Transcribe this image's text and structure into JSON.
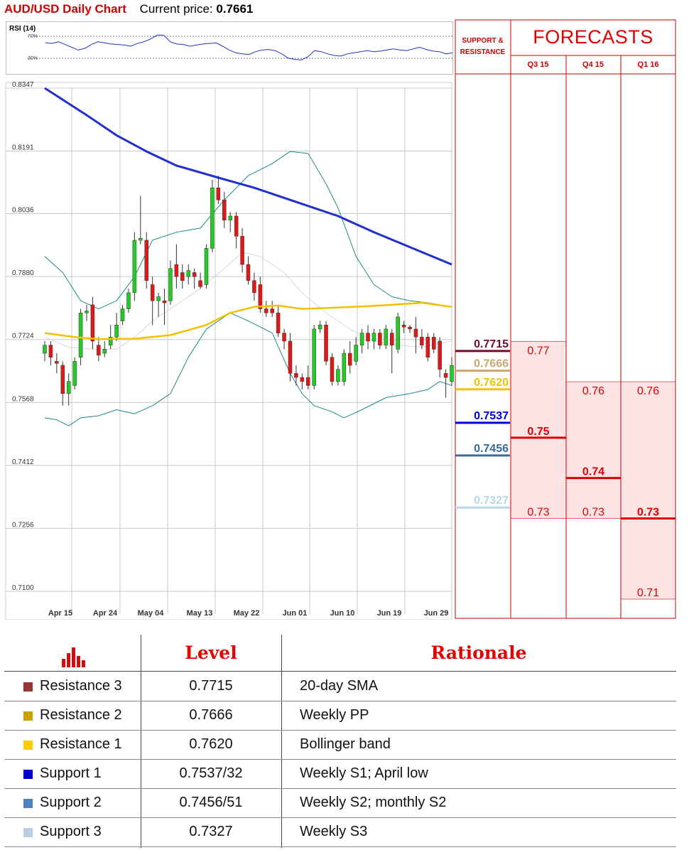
{
  "header": {
    "title": "AUD/USD Daily Chart",
    "current_label": "Current price:",
    "current_value": "0.7661"
  },
  "rsi": {
    "label": "RSI (14)",
    "level_high": "70%",
    "level_low": "30%",
    "values": [
      58,
      57,
      60,
      55,
      50,
      45,
      48,
      55,
      60,
      58,
      56,
      55,
      54,
      52,
      57,
      60,
      65,
      72,
      72,
      60,
      56,
      55,
      52,
      54,
      56,
      57,
      58,
      52,
      45,
      40,
      38,
      37,
      42,
      45,
      46,
      44,
      38,
      30,
      28,
      27,
      33,
      44,
      42,
      38,
      35,
      34,
      38,
      40,
      42,
      44,
      42,
      43,
      45,
      47,
      45,
      44,
      47,
      50,
      46,
      43,
      42,
      38,
      40
    ]
  },
  "panel": {
    "sr_title_1": "SUPPORT &",
    "sr_title_2": "RESISTANCE",
    "forecasts_title": "FORECASTS",
    "quarters": [
      "Q3 15",
      "Q4 15",
      "Q1 16"
    ]
  },
  "chart_data": {
    "type": "candlestick",
    "title": "AUD/USD Daily Chart",
    "y_ticks": [
      "0.8347",
      "0.8191",
      "0.8036",
      "0.7880",
      "0.7724",
      "0.7568",
      "0.7412",
      "0.7256",
      "0.7100"
    ],
    "ylim": [
      0.71,
      0.8347
    ],
    "x_ticks": [
      "Apr 15",
      "Apr 24",
      "May 04",
      "May 13",
      "May 22",
      "Jun 01",
      "Jun 10",
      "Jun 19",
      "Jun 29"
    ],
    "grid": true,
    "candles": [
      [
        0.769,
        0.772,
        0.767,
        0.771
      ],
      [
        0.771,
        0.772,
        0.766,
        0.768
      ],
      [
        0.767,
        0.769,
        0.764,
        0.7665
      ],
      [
        0.766,
        0.767,
        0.756,
        0.759
      ],
      [
        0.759,
        0.764,
        0.756,
        0.762
      ],
      [
        0.761,
        0.768,
        0.76,
        0.767
      ],
      [
        0.768,
        0.78,
        0.766,
        0.779
      ],
      [
        0.779,
        0.781,
        0.777,
        0.7795
      ],
      [
        0.781,
        0.783,
        0.77,
        0.772
      ],
      [
        0.771,
        0.773,
        0.767,
        0.7685
      ],
      [
        0.769,
        0.772,
        0.768,
        0.77
      ],
      [
        0.771,
        0.776,
        0.77,
        0.773
      ],
      [
        0.773,
        0.779,
        0.772,
        0.776
      ],
      [
        0.777,
        0.781,
        0.776,
        0.78
      ],
      [
        0.78,
        0.785,
        0.779,
        0.784
      ],
      [
        0.784,
        0.799,
        0.782,
        0.797
      ],
      [
        0.797,
        0.808,
        0.796,
        0.7975
      ],
      [
        0.797,
        0.799,
        0.785,
        0.787
      ],
      [
        0.786,
        0.788,
        0.776,
        0.782
      ],
      [
        0.782,
        0.784,
        0.778,
        0.783
      ],
      [
        0.782,
        0.785,
        0.776,
        0.7815
      ],
      [
        0.782,
        0.792,
        0.781,
        0.79
      ],
      [
        0.791,
        0.796,
        0.785,
        0.788
      ],
      [
        0.789,
        0.791,
        0.785,
        0.787
      ],
      [
        0.788,
        0.791,
        0.786,
        0.7895
      ],
      [
        0.789,
        0.79,
        0.785,
        0.788
      ],
      [
        0.787,
        0.789,
        0.785,
        0.7855
      ],
      [
        0.786,
        0.796,
        0.785,
        0.795
      ],
      [
        0.795,
        0.812,
        0.794,
        0.81
      ],
      [
        0.81,
        0.813,
        0.806,
        0.807
      ],
      [
        0.807,
        0.809,
        0.8,
        0.802
      ],
      [
        0.802,
        0.804,
        0.799,
        0.803
      ],
      [
        0.803,
        0.804,
        0.795,
        0.798
      ],
      [
        0.798,
        0.8,
        0.789,
        0.791
      ],
      [
        0.791,
        0.793,
        0.786,
        0.787
      ],
      [
        0.787,
        0.789,
        0.782,
        0.784
      ],
      [
        0.786,
        0.788,
        0.779,
        0.78
      ],
      [
        0.78,
        0.782,
        0.778,
        0.779
      ],
      [
        0.78,
        0.782,
        0.778,
        0.779
      ],
      [
        0.779,
        0.781,
        0.773,
        0.774
      ],
      [
        0.774,
        0.775,
        0.77,
        0.772
      ],
      [
        0.772,
        0.774,
        0.762,
        0.764
      ],
      [
        0.764,
        0.766,
        0.761,
        0.763
      ],
      [
        0.763,
        0.764,
        0.76,
        0.762
      ],
      [
        0.763,
        0.766,
        0.76,
        0.761
      ],
      [
        0.761,
        0.776,
        0.76,
        0.775
      ],
      [
        0.775,
        0.777,
        0.774,
        0.776
      ],
      [
        0.776,
        0.777,
        0.766,
        0.767
      ],
      [
        0.768,
        0.769,
        0.761,
        0.762
      ],
      [
        0.762,
        0.766,
        0.761,
        0.765
      ],
      [
        0.762,
        0.77,
        0.761,
        0.769
      ],
      [
        0.769,
        0.772,
        0.764,
        0.766
      ],
      [
        0.767,
        0.773,
        0.766,
        0.771
      ],
      [
        0.771,
        0.775,
        0.769,
        0.774
      ],
      [
        0.774,
        0.776,
        0.77,
        0.772
      ],
      [
        0.772,
        0.775,
        0.77,
        0.774
      ],
      [
        0.774,
        0.775,
        0.77,
        0.771
      ],
      [
        0.771,
        0.776,
        0.77,
        0.775
      ],
      [
        0.774,
        0.775,
        0.764,
        0.771
      ],
      [
        0.77,
        0.779,
        0.769,
        0.778
      ],
      [
        0.776,
        0.777,
        0.774,
        0.7755
      ],
      [
        0.7755,
        0.776,
        0.774,
        0.775
      ],
      [
        0.775,
        0.778,
        0.769,
        0.773
      ],
      [
        0.773,
        0.775,
        0.77,
        0.771
      ],
      [
        0.773,
        0.774,
        0.767,
        0.768
      ],
      [
        0.773,
        0.774,
        0.769,
        0.77
      ],
      [
        0.772,
        0.773,
        0.763,
        0.765
      ],
      [
        0.764,
        0.765,
        0.758,
        0.763
      ],
      [
        0.762,
        0.768,
        0.761,
        0.766
      ]
    ],
    "sma200": [
      [
        0,
        0.8347
      ],
      [
        7,
        0.828
      ],
      [
        12,
        0.823
      ],
      [
        17,
        0.819
      ],
      [
        22,
        0.8155
      ],
      [
        29,
        0.8125
      ],
      [
        35,
        0.81
      ],
      [
        43,
        0.806
      ],
      [
        49,
        0.803
      ],
      [
        55,
        0.799
      ],
      [
        68,
        0.791
      ]
    ],
    "sma_short": [
      [
        0,
        0.774
      ],
      [
        5,
        0.773
      ],
      [
        9,
        0.7725
      ],
      [
        15,
        0.7726
      ],
      [
        21,
        0.7735
      ],
      [
        27,
        0.776
      ],
      [
        31,
        0.779
      ],
      [
        35,
        0.7805
      ],
      [
        39,
        0.7808
      ],
      [
        43,
        0.78
      ],
      [
        47,
        0.7802
      ],
      [
        53,
        0.7806
      ],
      [
        58,
        0.781
      ],
      [
        63,
        0.7815
      ],
      [
        68,
        0.7805
      ]
    ],
    "bb_upper": [
      [
        0,
        0.793
      ],
      [
        3,
        0.789
      ],
      [
        6,
        0.782
      ],
      [
        9,
        0.78
      ],
      [
        12,
        0.782
      ],
      [
        15,
        0.788
      ],
      [
        18,
        0.797
      ],
      [
        22,
        0.799
      ],
      [
        26,
        0.8
      ],
      [
        30,
        0.807
      ],
      [
        34,
        0.813
      ],
      [
        38,
        0.816
      ],
      [
        41,
        0.819
      ],
      [
        44,
        0.8185
      ],
      [
        47,
        0.811
      ],
      [
        49,
        0.805
      ],
      [
        52,
        0.793
      ],
      [
        55,
        0.786
      ],
      [
        58,
        0.783
      ],
      [
        61,
        0.782
      ],
      [
        64,
        0.7815
      ],
      [
        68,
        0.7805
      ]
    ],
    "bb_middle": [
      [
        0,
        0.773
      ],
      [
        4,
        0.7705
      ],
      [
        8,
        0.77
      ],
      [
        12,
        0.77
      ],
      [
        15,
        0.773
      ],
      [
        18,
        0.777
      ],
      [
        22,
        0.781
      ],
      [
        26,
        0.785
      ],
      [
        30,
        0.79
      ],
      [
        33,
        0.794
      ],
      [
        36,
        0.793
      ],
      [
        40,
        0.789
      ],
      [
        43,
        0.784
      ],
      [
        47,
        0.779
      ],
      [
        51,
        0.775
      ],
      [
        55,
        0.772
      ],
      [
        59,
        0.771
      ],
      [
        63,
        0.7705
      ],
      [
        68,
        0.772
      ]
    ],
    "bb_lower": [
      [
        0,
        0.753
      ],
      [
        2,
        0.7525
      ],
      [
        4,
        0.751
      ],
      [
        6,
        0.753
      ],
      [
        9,
        0.7535
      ],
      [
        12,
        0.755
      ],
      [
        15,
        0.754
      ],
      [
        18,
        0.756
      ],
      [
        21,
        0.759
      ],
      [
        24,
        0.768
      ],
      [
        27,
        0.775
      ],
      [
        31,
        0.779
      ],
      [
        34,
        0.777
      ],
      [
        38,
        0.774
      ],
      [
        41,
        0.764
      ],
      [
        43,
        0.759
      ],
      [
        45,
        0.756
      ],
      [
        48,
        0.7545
      ],
      [
        50,
        0.753
      ],
      [
        53,
        0.755
      ],
      [
        57,
        0.758
      ],
      [
        61,
        0.759
      ],
      [
        64,
        0.76
      ],
      [
        66,
        0.762
      ],
      [
        68,
        0.761
      ]
    ],
    "levels": [
      {
        "value": 0.7715,
        "label": "0.7715",
        "color": "#6b0f2a"
      },
      {
        "value": 0.7666,
        "label": "0.7666",
        "color": "#c8a870"
      },
      {
        "value": 0.762,
        "label": "0.7620",
        "color": "#f2c200"
      },
      {
        "value": 0.7537,
        "label": "0.7537",
        "color": "#0000dd"
      },
      {
        "value": 0.7456,
        "label": "0.7456",
        "color": "#3a6a9a"
      },
      {
        "value": 0.7327,
        "label": "0.7327",
        "color": "#b8d6e4"
      }
    ],
    "forecasts": [
      {
        "quarter": "Q3 15",
        "top": 0.77,
        "bottom": 0.73,
        "values": [
          {
            "value": 0.77,
            "label": "0.77"
          },
          {
            "value": 0.75,
            "label": "0.75",
            "main": true
          },
          {
            "value": 0.73,
            "label": "0.73"
          }
        ]
      },
      {
        "quarter": "Q4 15",
        "top": 0.76,
        "bottom": 0.73,
        "values": [
          {
            "value": 0.76,
            "label": "0.76"
          },
          {
            "value": 0.74,
            "label": "0.74",
            "main": true
          },
          {
            "value": 0.73,
            "label": "0.73"
          }
        ]
      },
      {
        "quarter": "Q1 16",
        "top": 0.76,
        "bottom": 0.71,
        "values": [
          {
            "value": 0.76,
            "label": "0.76"
          },
          {
            "value": 0.73,
            "label": "0.73",
            "main": true
          },
          {
            "value": 0.71,
            "label": "0.71"
          }
        ]
      }
    ]
  },
  "table": {
    "headers": {
      "level": "Level",
      "rationale": "Rationale"
    },
    "rows": [
      {
        "name": "Resistance 3",
        "level": "0.7715",
        "rationale": "20-day SMA",
        "color": "#953735"
      },
      {
        "name": "Resistance 2",
        "level": "0.7666",
        "rationale": "Weekly PP",
        "color": "#c8a000"
      },
      {
        "name": "Resistance 1",
        "level": "0.7620",
        "rationale": "Bollinger band",
        "color": "#ffcc00"
      },
      {
        "name": "Support 1",
        "level": "0.7537/32",
        "rationale": "Weekly S1; April low",
        "color": "#0000cc"
      },
      {
        "name": "Support 2",
        "level": "0.7456/51",
        "rationale": "Weekly S2; monthly S2",
        "color": "#4f81bd"
      },
      {
        "name": "Support 3",
        "level": "0.7327",
        "rationale": "Weekly S3",
        "color": "#b9cde5"
      }
    ]
  }
}
